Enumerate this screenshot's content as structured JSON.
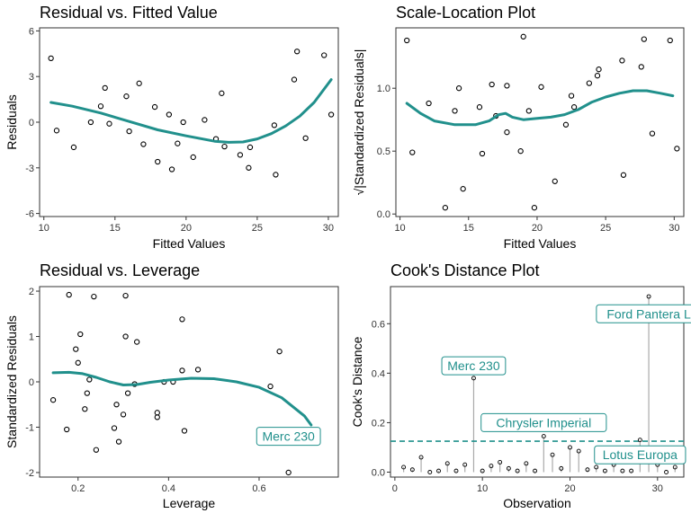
{
  "chart_data": [
    {
      "type": "scatter",
      "title": "Residual vs. Fitted Value",
      "xlabel": "Fitted Values",
      "ylabel": "Residuals",
      "xlim": [
        9.7,
        30.7
      ],
      "ylim": [
        -6.2,
        6.2
      ],
      "xticks": [
        10,
        15,
        20,
        25,
        30
      ],
      "yticks": [
        -6,
        -3,
        0,
        3,
        6
      ],
      "grid": false,
      "points": [
        {
          "x": 10.5,
          "y": 4.2
        },
        {
          "x": 10.9,
          "y": -0.55
        },
        {
          "x": 12.1,
          "y": -1.65
        },
        {
          "x": 13.3,
          "y": 0.0
        },
        {
          "x": 14.0,
          "y": 1.05
        },
        {
          "x": 14.3,
          "y": 2.25
        },
        {
          "x": 14.6,
          "y": -0.1
        },
        {
          "x": 15.8,
          "y": 1.7
        },
        {
          "x": 16.0,
          "y": -0.6
        },
        {
          "x": 16.7,
          "y": 2.55
        },
        {
          "x": 17.0,
          "y": -1.45
        },
        {
          "x": 17.8,
          "y": 1.0
        },
        {
          "x": 18.0,
          "y": -2.6
        },
        {
          "x": 18.8,
          "y": 0.5
        },
        {
          "x": 19.0,
          "y": -3.1
        },
        {
          "x": 19.4,
          "y": -1.4
        },
        {
          "x": 19.8,
          "y": 0.0
        },
        {
          "x": 20.5,
          "y": -2.3
        },
        {
          "x": 21.3,
          "y": 0.15
        },
        {
          "x": 22.1,
          "y": -1.1
        },
        {
          "x": 22.5,
          "y": 1.9
        },
        {
          "x": 22.7,
          "y": -1.6
        },
        {
          "x": 23.8,
          "y": -2.15
        },
        {
          "x": 24.5,
          "y": -1.65
        },
        {
          "x": 24.4,
          "y": -3.0
        },
        {
          "x": 26.2,
          "y": -0.2
        },
        {
          "x": 26.3,
          "y": -3.45
        },
        {
          "x": 27.6,
          "y": 2.8
        },
        {
          "x": 27.8,
          "y": 4.65
        },
        {
          "x": 28.4,
          "y": -1.05
        },
        {
          "x": 29.7,
          "y": 4.4
        },
        {
          "x": 30.2,
          "y": 0.5
        }
      ],
      "smooth": [
        {
          "x": 10.5,
          "y": 1.3
        },
        {
          "x": 12,
          "y": 1.05
        },
        {
          "x": 14,
          "y": 0.6
        },
        {
          "x": 16,
          "y": 0.05
        },
        {
          "x": 18,
          "y": -0.5
        },
        {
          "x": 20,
          "y": -0.9
        },
        {
          "x": 22,
          "y": -1.25
        },
        {
          "x": 23,
          "y": -1.32
        },
        {
          "x": 24,
          "y": -1.3
        },
        {
          "x": 25,
          "y": -1.1
        },
        {
          "x": 26,
          "y": -0.75
        },
        {
          "x": 27,
          "y": -0.25
        },
        {
          "x": 28,
          "y": 0.4
        },
        {
          "x": 29,
          "y": 1.3
        },
        {
          "x": 30.2,
          "y": 2.8
        }
      ]
    },
    {
      "type": "scatter",
      "title": "Scale-Location Plot",
      "xlabel": "Fitted Values",
      "ylabel": "√|Standardized Residuals|",
      "xlim": [
        9.7,
        30.7
      ],
      "ylim": [
        -0.02,
        1.48
      ],
      "xticks": [
        10,
        15,
        20,
        25,
        30
      ],
      "yticks": [
        0.0,
        0.5,
        1.0
      ],
      "grid": false,
      "points": [
        {
          "x": 10.5,
          "y": 1.38
        },
        {
          "x": 10.9,
          "y": 0.49
        },
        {
          "x": 12.1,
          "y": 0.88
        },
        {
          "x": 13.3,
          "y": 0.05
        },
        {
          "x": 14.0,
          "y": 0.82
        },
        {
          "x": 14.3,
          "y": 1.0
        },
        {
          "x": 14.6,
          "y": 0.2
        },
        {
          "x": 15.8,
          "y": 0.85
        },
        {
          "x": 16.0,
          "y": 0.48
        },
        {
          "x": 16.7,
          "y": 1.03
        },
        {
          "x": 17.0,
          "y": 0.78
        },
        {
          "x": 17.8,
          "y": 1.02
        },
        {
          "x": 17.8,
          "y": 0.65
        },
        {
          "x": 18.8,
          "y": 0.5
        },
        {
          "x": 19.0,
          "y": 1.41
        },
        {
          "x": 19.4,
          "y": 0.82
        },
        {
          "x": 19.8,
          "y": 0.05
        },
        {
          "x": 20.3,
          "y": 1.01
        },
        {
          "x": 21.3,
          "y": 0.26
        },
        {
          "x": 22.1,
          "y": 0.71
        },
        {
          "x": 22.5,
          "y": 0.94
        },
        {
          "x": 22.7,
          "y": 0.85
        },
        {
          "x": 23.8,
          "y": 1.04
        },
        {
          "x": 24.5,
          "y": 1.15
        },
        {
          "x": 24.4,
          "y": 1.1
        },
        {
          "x": 26.2,
          "y": 1.22
        },
        {
          "x": 26.3,
          "y": 0.31
        },
        {
          "x": 27.6,
          "y": 1.17
        },
        {
          "x": 27.8,
          "y": 1.39
        },
        {
          "x": 28.4,
          "y": 0.64
        },
        {
          "x": 29.7,
          "y": 1.38
        },
        {
          "x": 30.2,
          "y": 0.52
        }
      ],
      "smooth": [
        {
          "x": 10.5,
          "y": 0.88
        },
        {
          "x": 11.5,
          "y": 0.8
        },
        {
          "x": 12.5,
          "y": 0.74
        },
        {
          "x": 14,
          "y": 0.71
        },
        {
          "x": 15.5,
          "y": 0.71
        },
        {
          "x": 16.5,
          "y": 0.74
        },
        {
          "x": 17.2,
          "y": 0.79
        },
        {
          "x": 17.7,
          "y": 0.8
        },
        {
          "x": 18.2,
          "y": 0.77
        },
        {
          "x": 19,
          "y": 0.75
        },
        {
          "x": 20,
          "y": 0.76
        },
        {
          "x": 21,
          "y": 0.77
        },
        {
          "x": 22,
          "y": 0.79
        },
        {
          "x": 23,
          "y": 0.83
        },
        {
          "x": 24,
          "y": 0.89
        },
        {
          "x": 25,
          "y": 0.93
        },
        {
          "x": 26,
          "y": 0.96
        },
        {
          "x": 27,
          "y": 0.98
        },
        {
          "x": 28,
          "y": 0.98
        },
        {
          "x": 29,
          "y": 0.96
        },
        {
          "x": 29.9,
          "y": 0.94
        }
      ]
    },
    {
      "type": "scatter",
      "title": "Residual vs. Leverage",
      "xlabel": "Leverage",
      "ylabel": "Standardized Residuals",
      "xlim": [
        0.115,
        0.775
      ],
      "ylim": [
        -2.1,
        2.1
      ],
      "xticks": [
        0.2,
        0.4,
        0.6
      ],
      "yticks": [
        -2,
        -1,
        0,
        1,
        2
      ],
      "grid": false,
      "points": [
        {
          "x": 0.145,
          "y": -0.4
        },
        {
          "x": 0.175,
          "y": -1.05
        },
        {
          "x": 0.18,
          "y": 1.92
        },
        {
          "x": 0.195,
          "y": 0.72
        },
        {
          "x": 0.2,
          "y": 0.42
        },
        {
          "x": 0.205,
          "y": 1.05
        },
        {
          "x": 0.215,
          "y": -0.6
        },
        {
          "x": 0.22,
          "y": -0.25
        },
        {
          "x": 0.225,
          "y": 0.05
        },
        {
          "x": 0.235,
          "y": 1.88
        },
        {
          "x": 0.24,
          "y": -1.5
        },
        {
          "x": 0.28,
          "y": -1.02
        },
        {
          "x": 0.285,
          "y": -0.5
        },
        {
          "x": 0.29,
          "y": -1.32
        },
        {
          "x": 0.3,
          "y": -0.72
        },
        {
          "x": 0.305,
          "y": 1.0
        },
        {
          "x": 0.305,
          "y": 1.9
        },
        {
          "x": 0.31,
          "y": -0.25
        },
        {
          "x": 0.325,
          "y": -0.05
        },
        {
          "x": 0.33,
          "y": 0.88
        },
        {
          "x": 0.375,
          "y": -0.68
        },
        {
          "x": 0.375,
          "y": -0.78
        },
        {
          "x": 0.39,
          "y": 0.0
        },
        {
          "x": 0.41,
          "y": 0.0
        },
        {
          "x": 0.43,
          "y": 1.38
        },
        {
          "x": 0.43,
          "y": 0.25
        },
        {
          "x": 0.435,
          "y": -1.08
        },
        {
          "x": 0.465,
          "y": 0.27
        },
        {
          "x": 0.625,
          "y": -0.1
        },
        {
          "x": 0.645,
          "y": 0.67
        },
        {
          "x": 0.665,
          "y": -2.0
        }
      ],
      "smooth": [
        {
          "x": 0.145,
          "y": 0.2
        },
        {
          "x": 0.18,
          "y": 0.21
        },
        {
          "x": 0.21,
          "y": 0.18
        },
        {
          "x": 0.24,
          "y": 0.1
        },
        {
          "x": 0.27,
          "y": 0.0
        },
        {
          "x": 0.3,
          "y": -0.07
        },
        {
          "x": 0.33,
          "y": -0.06
        },
        {
          "x": 0.36,
          "y": -0.01
        },
        {
          "x": 0.4,
          "y": 0.04
        },
        {
          "x": 0.45,
          "y": 0.08
        },
        {
          "x": 0.5,
          "y": 0.07
        },
        {
          "x": 0.55,
          "y": 0.0
        },
        {
          "x": 0.6,
          "y": -0.12
        },
        {
          "x": 0.65,
          "y": -0.35
        },
        {
          "x": 0.7,
          "y": -0.75
        },
        {
          "x": 0.715,
          "y": -0.95
        }
      ],
      "annotations": [
        {
          "label": "Merc 230",
          "x": 0.665,
          "y": -1.2
        }
      ]
    },
    {
      "type": "bar",
      "title": "Cook's Distance Plot",
      "xlabel": "Observation",
      "ylabel": "Cook's Distance",
      "xlim": [
        -0.5,
        33
      ],
      "ylim": [
        -0.02,
        0.75
      ],
      "xticks": [
        0,
        10,
        20,
        30
      ],
      "yticks": [
        0.0,
        0.2,
        0.4,
        0.6
      ],
      "grid": false,
      "threshold": 0.125,
      "x": [
        1,
        2,
        3,
        4,
        5,
        6,
        7,
        8,
        9,
        10,
        11,
        12,
        13,
        14,
        15,
        16,
        17,
        18,
        19,
        20,
        21,
        22,
        23,
        24,
        25,
        26,
        27,
        28,
        29,
        30,
        31,
        32
      ],
      "values": [
        0.02,
        0.01,
        0.06,
        0.0,
        0.005,
        0.035,
        0.005,
        0.03,
        0.38,
        0.005,
        0.025,
        0.04,
        0.015,
        0.005,
        0.035,
        0.005,
        0.145,
        0.07,
        0.015,
        0.1,
        0.085,
        0.01,
        0.02,
        0.005,
        0.03,
        0.005,
        0.005,
        0.13,
        0.71,
        0.03,
        0.0,
        0.02
      ],
      "annotations": [
        {
          "label": "Ford Pantera L",
          "x": 29,
          "y": 0.64
        },
        {
          "label": "Merc 230",
          "x": 9,
          "y": 0.43
        },
        {
          "label": "Chrysler Imperial",
          "x": 17,
          "y": 0.2
        },
        {
          "label": "Lotus Europa",
          "x": 28,
          "y": 0.07
        }
      ]
    }
  ]
}
